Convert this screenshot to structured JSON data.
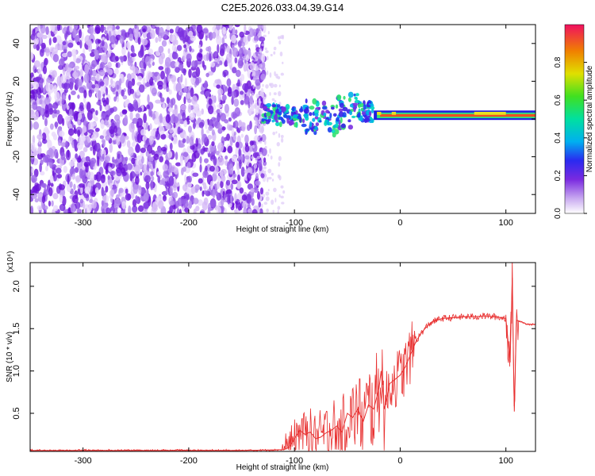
{
  "title": "C2E5.2026.033.04.39.G14",
  "colors": {
    "line": "#e83030",
    "frame": "#000000"
  },
  "chart_data": [
    {
      "type": "heatmap",
      "title": "C2E5.2026.033.04.39.G14",
      "xlabel": "Height of straight line (km)",
      "ylabel": "Frequency (Hz)",
      "xlim": [
        -350,
        128
      ],
      "ylim": [
        -50,
        50
      ],
      "xticks": [
        -300,
        -200,
        -100,
        0,
        100
      ],
      "yticks": [
        -40,
        -20,
        0,
        20,
        40
      ],
      "xtick_labels": [
        "-300",
        "-200",
        "-100",
        "0",
        "100"
      ],
      "ytick_labels": [
        "-40",
        "-20",
        "0",
        "20",
        "40"
      ],
      "regions": [
        {
          "name": "noise",
          "x": [
            -350,
            -128
          ],
          "freq": [
            -50,
            50
          ],
          "amplitude": 0.15
        },
        {
          "name": "broadband",
          "x": [
            -130,
            -25
          ],
          "freq": [
            -15,
            10
          ],
          "amplitude": 0.4
        },
        {
          "name": "tone",
          "x": [
            -25,
            128
          ],
          "freq": [
            0,
            4
          ],
          "amplitude": 0.95
        }
      ],
      "colorbar": {
        "label": "Normalized spectral amplitude",
        "range": [
          0.0,
          1.0
        ],
        "ticks": [
          0.0,
          0.2,
          0.4,
          0.6,
          0.8
        ],
        "tick_labels": [
          "0.0",
          "0.2",
          "0.4",
          "0.6",
          "0.8"
        ]
      }
    },
    {
      "type": "line",
      "xlabel": "Height of straight line (km)",
      "ylabel": "SNR (10 * v/v)",
      "ylabel_scale": "(x10⁴)",
      "xlim": [
        -350,
        128
      ],
      "ylim": [
        0.05,
        2.28
      ],
      "xticks": [
        -300,
        -200,
        -100,
        0,
        100
      ],
      "yticks": [
        0.5,
        1.0,
        1.5,
        2.0
      ],
      "xtick_labels": [
        "-300",
        "-200",
        "-100",
        "0",
        "100"
      ],
      "ytick_labels": [
        "0.5",
        "1.0",
        "1.5",
        "2.0"
      ],
      "series": [
        {
          "name": "SNR",
          "x": [
            -350,
            -300,
            -250,
            -200,
            -150,
            -110,
            -105,
            -100,
            -95,
            -90,
            -85,
            -80,
            -75,
            -70,
            -65,
            -60,
            -55,
            -50,
            -45,
            -40,
            -35,
            -30,
            -25,
            -20,
            -18,
            -15,
            -12,
            -10,
            -5,
            0,
            5,
            10,
            15,
            20,
            25,
            30,
            35,
            40,
            50,
            60,
            70,
            80,
            90,
            100,
            104,
            106,
            108,
            110,
            115,
            120,
            128
          ],
          "y": [
            0.06,
            0.06,
            0.06,
            0.06,
            0.06,
            0.07,
            0.1,
            0.2,
            0.3,
            0.25,
            0.28,
            0.2,
            0.22,
            0.27,
            0.3,
            0.35,
            0.28,
            0.5,
            0.45,
            0.55,
            0.4,
            0.6,
            0.55,
            0.8,
            1.0,
            0.55,
            0.7,
            0.85,
            0.9,
            0.95,
            1.05,
            1.2,
            1.35,
            1.45,
            1.52,
            1.58,
            1.6,
            1.62,
            1.63,
            1.64,
            1.64,
            1.65,
            1.64,
            1.62,
            1.1,
            2.1,
            0.52,
            1.6,
            1.58,
            1.55,
            1.55
          ]
        }
      ]
    }
  ]
}
